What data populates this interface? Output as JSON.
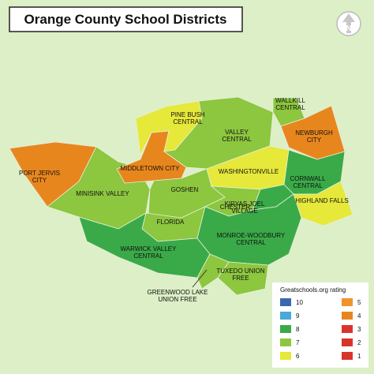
{
  "header": {
    "title": "Orange County School Districts"
  },
  "districts": [
    {
      "lines": [
        "PORT JERVIS",
        "CITY"
      ],
      "rating": 4
    },
    {
      "lines": [
        "MINISINK VALLEY"
      ],
      "rating": 7
    },
    {
      "lines": [
        "MIDDLETOWN CITY"
      ],
      "rating": 4
    },
    {
      "lines": [
        "PINE BUSH",
        "CENTRAL"
      ],
      "rating": 6
    },
    {
      "lines": [
        "VALLEY",
        "CENTRAL"
      ],
      "rating": 7
    },
    {
      "lines": [
        "WALLKILL",
        "CENTRAL"
      ],
      "rating": 7
    },
    {
      "lines": [
        "NEWBURGH",
        "CITY"
      ],
      "rating": 4
    },
    {
      "lines": [
        "WASHINGTONVILLE"
      ],
      "rating": 6
    },
    {
      "lines": [
        "CORNWALL",
        "CENTRAL"
      ],
      "rating": 8
    },
    {
      "lines": [
        "HIGHLAND FALLS"
      ],
      "rating": 6
    },
    {
      "lines": [
        "GOSHEN"
      ],
      "rating": 7
    },
    {
      "lines": [
        "CHESTER"
      ],
      "rating": 7
    },
    {
      "lines": [
        "KIRYAS JOEL",
        "VILLAGE"
      ],
      "rating": 8
    },
    {
      "lines": [
        "FLORIDA"
      ],
      "rating": 7
    },
    {
      "lines": [
        "WARWICK VALLEY",
        "CENTRAL"
      ],
      "rating": 8
    },
    {
      "lines": [
        "MONROE-WOODBURY",
        "CENTRAL"
      ],
      "rating": 8
    },
    {
      "lines": [
        "TUXEDO UNION",
        "FREE"
      ],
      "rating": 7
    },
    {
      "lines": [
        "GREENWOOD LAKE",
        "UNION FREE"
      ],
      "rating": 7
    }
  ],
  "legend": {
    "title": "Greatschools.org rating",
    "items": [
      {
        "value": 10,
        "color": "#3a68b0"
      },
      {
        "value": 9,
        "color": "#4aa9da"
      },
      {
        "value": 8,
        "color": "#3aaa48"
      },
      {
        "value": 7,
        "color": "#8dc63f"
      },
      {
        "value": 6,
        "color": "#e6e83a"
      },
      {
        "value": 5,
        "color": "#f0932b"
      },
      {
        "value": 4,
        "color": "#e8861e"
      },
      {
        "value": 3,
        "color": "#d9342b"
      },
      {
        "value": 2,
        "color": "#d9342b"
      },
      {
        "value": 1,
        "color": "#d9342b"
      }
    ]
  }
}
